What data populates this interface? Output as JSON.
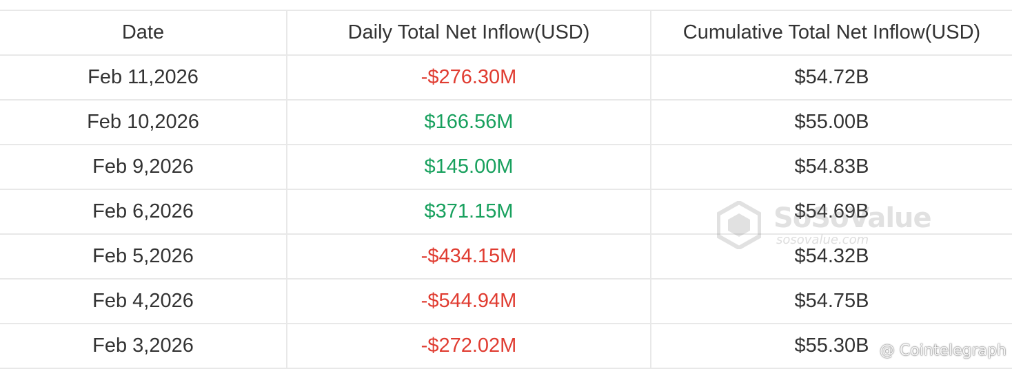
{
  "chart_data": {
    "type": "table",
    "columns": [
      "Date",
      "Daily Total Net Inflow(USD)",
      "Cumulative Total Net Inflow(USD)"
    ],
    "rows": [
      {
        "date": "Feb 11,2026",
        "daily": "-$276.30M",
        "cumulative": "$54.72B",
        "daily_sign": "negative"
      },
      {
        "date": "Feb 10,2026",
        "daily": "$166.56M",
        "cumulative": "$55.00B",
        "daily_sign": "positive"
      },
      {
        "date": "Feb 9,2026",
        "daily": "$145.00M",
        "cumulative": "$54.83B",
        "daily_sign": "positive"
      },
      {
        "date": "Feb 6,2026",
        "daily": "$371.15M",
        "cumulative": "$54.69B",
        "daily_sign": "positive"
      },
      {
        "date": "Feb 5,2026",
        "daily": "-$434.15M",
        "cumulative": "$54.32B",
        "daily_sign": "negative"
      },
      {
        "date": "Feb 4,2026",
        "daily": "-$544.94M",
        "cumulative": "$54.75B",
        "daily_sign": "negative"
      },
      {
        "date": "Feb 3,2026",
        "daily": "-$272.02M",
        "cumulative": "$55.30B",
        "daily_sign": "negative"
      }
    ]
  },
  "colors": {
    "negative": "#e03c31",
    "positive": "#17a05d",
    "text": "#333333",
    "grid": "#e8e8e8"
  },
  "watermark": {
    "name": "SoSoValue",
    "domain": "sosovalue.com"
  },
  "credit": "@ Cointelegraph"
}
